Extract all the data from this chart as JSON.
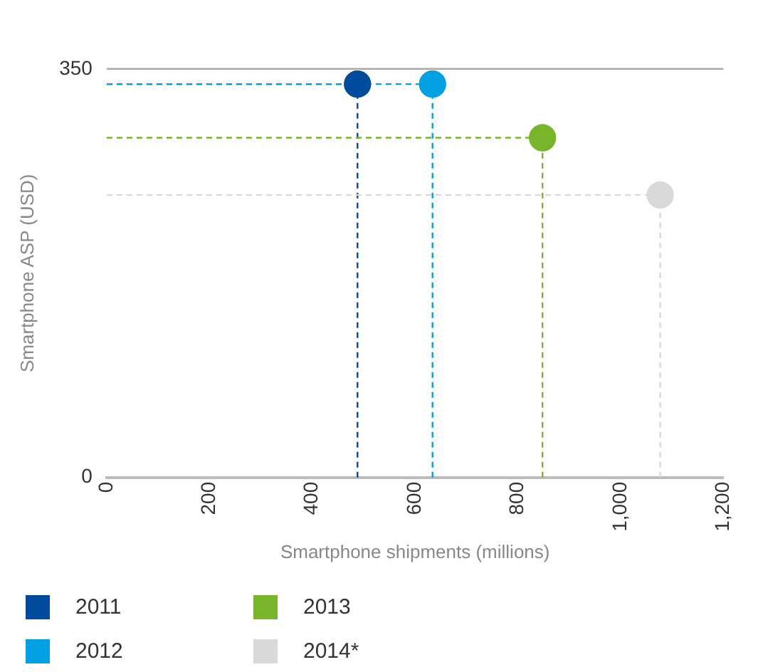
{
  "chart_data": {
    "type": "scatter",
    "xlabel": "Smartphone shipments (millions)",
    "ylabel": "Smartphone ASP (USD)",
    "xlim": [
      0,
      1200
    ],
    "xticks": [
      0,
      200,
      400,
      {
        "value": 600,
        "label": "600"
      },
      800,
      {
        "value": 1000,
        "label": "1,000"
      },
      {
        "value": 1200,
        "label": "1,200"
      }
    ],
    "ylim": [
      0,
      350
    ],
    "yticks": [
      0,
      350
    ],
    "legend": "bottom left",
    "marker": "circle",
    "ref_lines": [
      {
        "axis": "y",
        "value": 350,
        "color": "#aaaaaa",
        "line_style": "solid"
      },
      {
        "axis": "y",
        "value": 337,
        "color": "#004b9b",
        "line_style": "dashed"
      },
      {
        "axis": "x",
        "value": 488,
        "color": "#004b9b",
        "line_style": "dashed"
      },
      {
        "axis": "y",
        "value": 337,
        "color": "#00a0e3",
        "line_style": "dashed"
      },
      {
        "axis": "x",
        "value": 634,
        "color": "#00a0e3",
        "line_style": "dashed"
      },
      {
        "axis": "y",
        "value": 291,
        "color": "#78b52a",
        "line_style": "dashed"
      },
      {
        "axis": "x",
        "value": 848,
        "color": "#78b52a",
        "line_style": "dashed"
      },
      {
        "axis": "y",
        "value": 242,
        "color": "#d9d9d9",
        "line_style": "dashed"
      },
      {
        "axis": "x",
        "value": 1077,
        "color": "#d9d9d9",
        "line_style": "dashed"
      }
    ],
    "series": [
      {
        "name": "2011",
        "color": "#004b9b",
        "x": [
          488
        ],
        "values": [
          337
        ]
      },
      {
        "name": "2012",
        "color": "#00a0e3",
        "x": [
          634
        ],
        "values": [
          337
        ]
      },
      {
        "name": "2013",
        "color": "#78b52a",
        "x": [
          848
        ],
        "values": [
          291
        ]
      },
      {
        "name": "2014*",
        "color": "#d9d9d9",
        "x": [
          1077
        ],
        "values": [
          242
        ]
      }
    ]
  }
}
